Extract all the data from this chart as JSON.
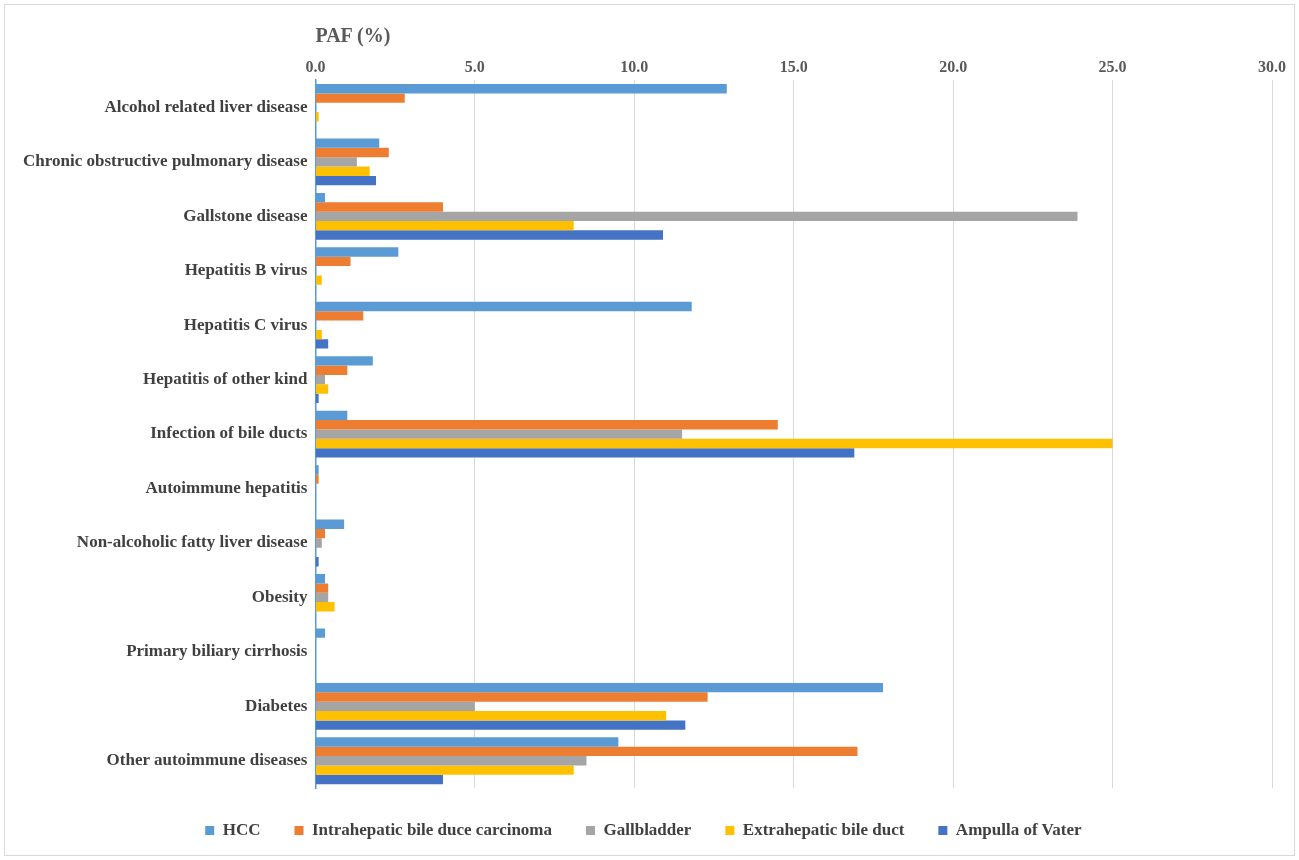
{
  "chart_data": {
    "type": "bar",
    "orientation": "horizontal",
    "xlabel": "PAF (%)",
    "categories": [
      "Alcohol related liver disease",
      "Chronic obstructive pulmonary disease",
      "Gallstone disease",
      "Hepatitis B virus",
      "Hepatitis C virus",
      "Hepatitis of other kind",
      "Infection of bile ducts",
      "Autoimmune hepatitis",
      "Non-alcoholic fatty liver disease",
      "Obesity",
      "Primary biliary cirrhosis",
      "Diabetes",
      "Other autoimmune diseases"
    ],
    "series": [
      {
        "name": "HCC",
        "color": "#5b9bd5",
        "values": [
          12.9,
          2.0,
          0.3,
          2.6,
          11.8,
          1.8,
          1.0,
          0.1,
          0.9,
          0.3,
          0.3,
          17.8,
          9.5
        ]
      },
      {
        "name": "Intrahepatic bile duce carcinoma",
        "color": "#ed7d31",
        "values": [
          2.8,
          2.3,
          4.0,
          1.1,
          1.5,
          1.0,
          14.5,
          0.1,
          0.3,
          0.4,
          0,
          12.3,
          17.0
        ]
      },
      {
        "name": "Gallbladder",
        "color": "#a5a5a5",
        "values": [
          0,
          1.3,
          23.9,
          0,
          0,
          0.3,
          11.5,
          0,
          0.2,
          0.4,
          0,
          5.0,
          8.5
        ]
      },
      {
        "name": "Extrahepatic bile duct",
        "color": "#ffc000",
        "values": [
          0.1,
          1.7,
          8.1,
          0.2,
          0.2,
          0.4,
          25.0,
          0,
          0,
          0.6,
          0,
          11.0,
          8.1
        ]
      },
      {
        "name": "Ampulla of Vater",
        "color": "#4472c4",
        "values": [
          0,
          1.9,
          10.9,
          0,
          0.4,
          0.1,
          16.9,
          0,
          0.1,
          0,
          0,
          11.6,
          4.0
        ]
      }
    ],
    "xlim": [
      0,
      30
    ],
    "xticks": [
      {
        "value": 0,
        "label": "0.0"
      },
      {
        "value": 5,
        "label": "5.0"
      },
      {
        "value": 10,
        "label": "10.0"
      },
      {
        "value": 15,
        "label": "15.0"
      },
      {
        "value": 20,
        "label": "20.0"
      },
      {
        "value": 25,
        "label": "25.0"
      },
      {
        "value": 30,
        "label": "30.0"
      }
    ],
    "grid": "x",
    "legend": "bottom"
  }
}
